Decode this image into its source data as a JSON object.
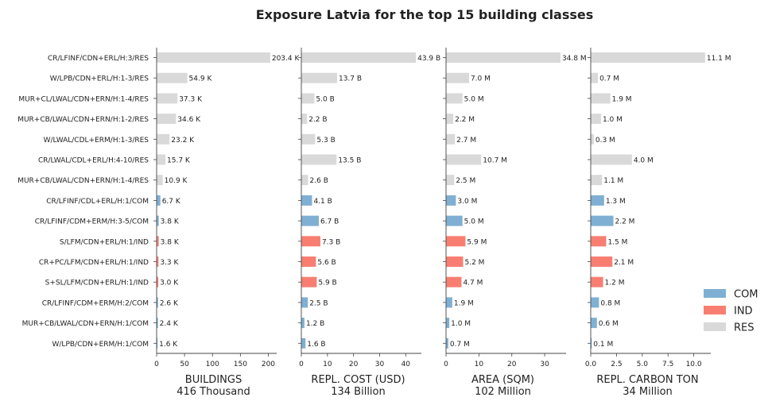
{
  "chart_data": {
    "type": "bar",
    "title": "Exposure Latvia for the top 15 building classes",
    "categories": [
      "CR/LFINF/CDN+ERL/H:3/RES",
      "W/LPB/CDN+ERL/H:1-3/RES",
      "MUR+CL/LWAL/CDN+ERN/H:1-4/RES",
      "MUR+CB/LWAL/CDN+ERN/H:1-2/RES",
      "W/LWAL/CDL+ERM/H:1-3/RES",
      "CR/LWAL/CDL+ERL/H:4-10/RES",
      "MUR+CB/LWAL/CDN+ERN/H:1-4/RES",
      "CR/LFINF/CDL+ERL/H:1/COM",
      "CR/LFINF/CDM+ERM/H:3-5/COM",
      "S/LFM/CDN+ERL/H:1/IND",
      "CR+PC/LFM/CDN+ERL/H:1/IND",
      "S+SL/LFM/CDN+ERL/H:1/IND",
      "CR/LFINF/CDM+ERM/H:2/COM",
      "MUR+CB/LWAL/CDN+ERN/H:1/COM",
      "W/LPB/CDN+ERM/H:1/COM"
    ],
    "occupancy": [
      "RES",
      "RES",
      "RES",
      "RES",
      "RES",
      "RES",
      "RES",
      "COM",
      "COM",
      "IND",
      "IND",
      "IND",
      "COM",
      "COM",
      "COM"
    ],
    "colors": {
      "COM": "#7fb0d3",
      "IND": "#f87e72",
      "RES": "#d9d9d9"
    },
    "legend": {
      "position": "right",
      "entries": [
        "COM",
        "IND",
        "RES"
      ]
    },
    "panels": [
      {
        "axis_label": "BUILDINGS",
        "total_label": "416 Thousand",
        "xlim": [
          0,
          215
        ],
        "ticks": [
          0,
          50,
          100,
          150,
          200
        ],
        "tick_labels": [
          "0",
          "50",
          "100",
          "150",
          "200"
        ],
        "values": [
          203.4,
          54.9,
          37.3,
          34.6,
          23.2,
          15.7,
          10.9,
          6.7,
          3.8,
          3.8,
          3.3,
          3.0,
          2.6,
          2.4,
          1.6
        ],
        "labels": [
          "203.4 K",
          "54.9 K",
          "37.3 K",
          "34.6 K",
          "23.2 K",
          "15.7 K",
          "10.9 K",
          "6.7 K",
          "3.8 K",
          "3.8 K",
          "3.3 K",
          "3.0 K",
          "2.6 K",
          "2.4 K",
          "1.6 K"
        ]
      },
      {
        "axis_label": "REPL. COST (USD)",
        "total_label": "134 Billion",
        "xlim": [
          0,
          46
        ],
        "ticks": [
          0,
          10,
          20,
          30,
          40
        ],
        "tick_labels": [
          "0",
          "10",
          "20",
          "30",
          "40"
        ],
        "values": [
          43.9,
          13.7,
          5.0,
          2.2,
          5.3,
          13.5,
          2.6,
          4.1,
          6.7,
          7.3,
          5.6,
          5.9,
          2.5,
          1.2,
          1.6
        ],
        "labels": [
          "43.9 B",
          "13.7 B",
          "5.0 B",
          "2.2 B",
          "5.3 B",
          "13.5 B",
          "2.6 B",
          "4.1 B",
          "6.7 B",
          "7.3 B",
          "5.6 B",
          "5.9 B",
          "2.5 B",
          "1.2 B",
          "1.6 B"
        ]
      },
      {
        "axis_label": "AREA (SQM)",
        "total_label": "102 Million",
        "xlim": [
          0,
          36.5
        ],
        "ticks": [
          0,
          10,
          20,
          30
        ],
        "tick_labels": [
          "0",
          "10",
          "20",
          "30"
        ],
        "values": [
          34.8,
          7.0,
          5.0,
          2.2,
          2.7,
          10.7,
          2.5,
          3.0,
          5.0,
          5.9,
          5.2,
          4.7,
          1.9,
          1.0,
          0.7
        ],
        "labels": [
          "34.8 M",
          "7.0 M",
          "5.0 M",
          "2.2 M",
          "2.7 M",
          "10.7 M",
          "2.5 M",
          "3.0 M",
          "5.0 M",
          "5.9 M",
          "5.2 M",
          "4.7 M",
          "1.9 M",
          "1.0 M",
          "0.7 M"
        ]
      },
      {
        "axis_label": "REPL. CARBON TON",
        "total_label": "34 Million",
        "xlim": [
          0,
          11.65
        ],
        "ticks": [
          0,
          2.5,
          5,
          7.5,
          10
        ],
        "tick_labels": [
          "0.0",
          "2.5",
          "5.0",
          "7.5",
          "10.0"
        ],
        "values": [
          11.1,
          0.7,
          1.9,
          1.0,
          0.3,
          4.0,
          1.1,
          1.3,
          2.2,
          1.5,
          2.1,
          1.2,
          0.8,
          0.6,
          0.1
        ],
        "labels": [
          "11.1 M",
          "0.7 M",
          "1.9 M",
          "1.0 M",
          "0.3 M",
          "4.0 M",
          "1.1 M",
          "1.3 M",
          "2.2 M",
          "1.5 M",
          "2.1 M",
          "1.2 M",
          "0.8 M",
          "0.6 M",
          "0.1 M"
        ]
      }
    ]
  }
}
